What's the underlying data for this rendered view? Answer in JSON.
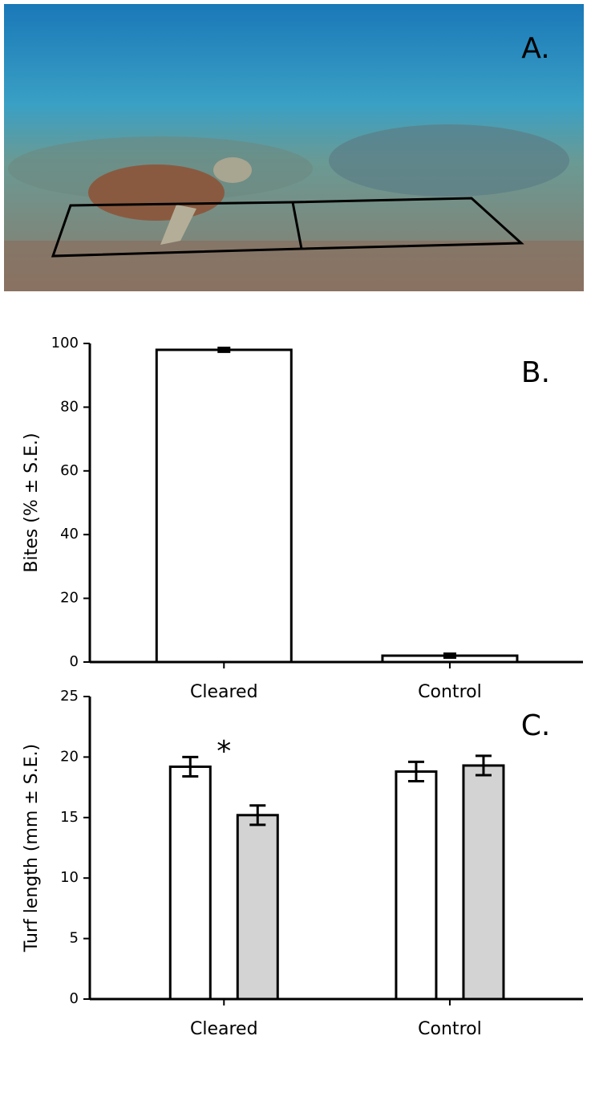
{
  "photo": {
    "label": "A."
  },
  "chart_data": [
    {
      "type": "bar",
      "panel_label": "B.",
      "ylabel": "Bites (% ± S.E.)",
      "categories": [
        "Cleared",
        "Control"
      ],
      "values": [
        98,
        2
      ],
      "errors": [
        0.6,
        0.6
      ],
      "color": "#ffffff",
      "ylim": [
        0,
        100
      ],
      "yticks": [
        0,
        20,
        40,
        60,
        80,
        100
      ]
    },
    {
      "type": "grouped_bar",
      "panel_label": "C.",
      "ylabel": "Turf length (mm ± S.E.)",
      "categories": [
        "Cleared",
        "Control"
      ],
      "series": [
        {
          "color": "#ffffff",
          "values": [
            19.2,
            18.8
          ],
          "errors": [
            0.8,
            0.8
          ]
        },
        {
          "color": "#d3d3d3",
          "values": [
            15.2,
            19.3
          ],
          "errors": [
            0.8,
            0.8
          ]
        }
      ],
      "annotations": [
        {
          "text": "*"
        }
      ],
      "ylim": [
        0,
        25
      ],
      "yticks": [
        0,
        5,
        10,
        15,
        20,
        25
      ]
    }
  ]
}
